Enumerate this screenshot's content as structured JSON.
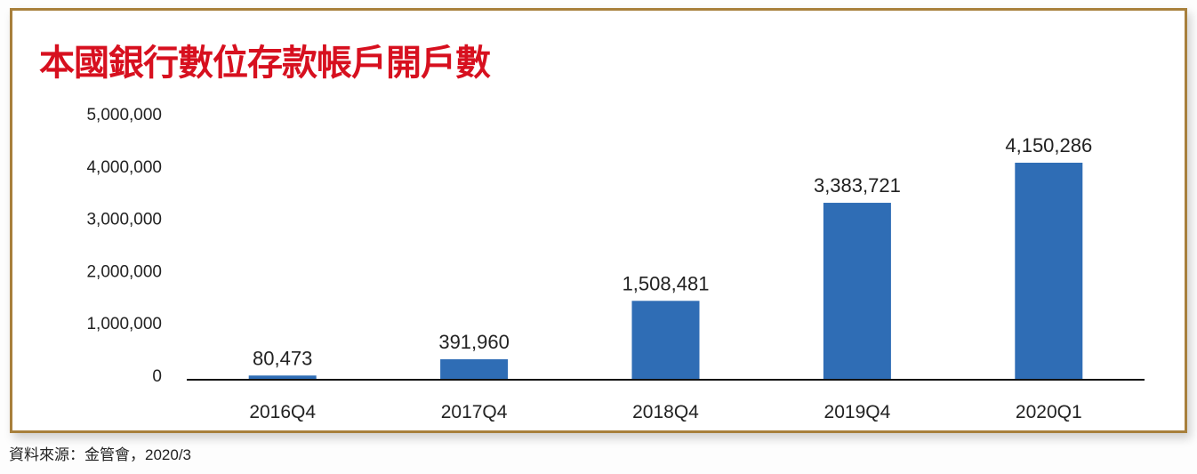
{
  "chart_data": {
    "type": "bar",
    "title": "本國銀行數位存款帳戶開戶數",
    "categories": [
      "2016Q4",
      "2017Q4",
      "2018Q4",
      "2019Q4",
      "2020Q1"
    ],
    "values": [
      80473,
      391960,
      1508481,
      3383721,
      4150286
    ],
    "data_labels": [
      "80,473",
      "391,960",
      "1,508,481",
      "3,383,721",
      "4,150,286"
    ],
    "xlabel": "",
    "ylabel": "",
    "ylim": [
      0,
      5000000
    ],
    "yticks": [
      0,
      1000000,
      2000000,
      3000000,
      4000000,
      5000000
    ],
    "ytick_labels": [
      "0",
      "1,000,000",
      "2,000,000",
      "3,000,000",
      "4,000,000",
      "5,000,000"
    ],
    "grid": false,
    "bar_color": "#2f6db5",
    "title_color": "#d7101f"
  },
  "source": "資料來源：金管會，2020/3"
}
